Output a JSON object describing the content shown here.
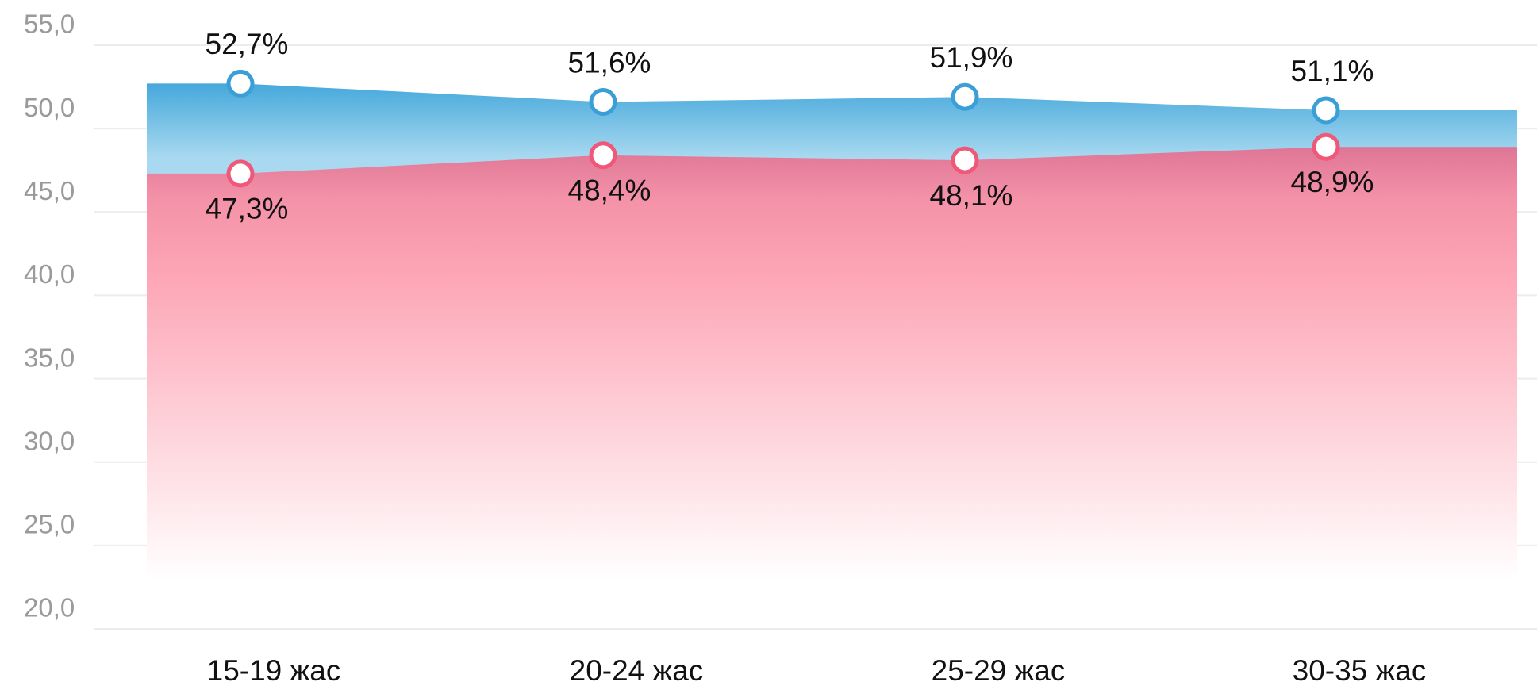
{
  "chart_data": {
    "type": "area",
    "categories": [
      "15-19 жас",
      "20-24 жас",
      "25-29 жас",
      "30-35 жас"
    ],
    "series": [
      {
        "color": "#3a9fd6",
        "values": [
          52.7,
          51.6,
          51.9,
          51.1
        ],
        "value_labels": [
          "52,7%",
          "51,6%",
          "51,9%",
          "51,1%"
        ]
      },
      {
        "color": "#f0587a",
        "values": [
          47.3,
          48.4,
          48.1,
          48.9
        ],
        "value_labels": [
          "47,3%",
          "48,4%",
          "48,1%",
          "48,9%"
        ]
      }
    ],
    "ylim": [
      20,
      55
    ],
    "yticks": [
      {
        "value": 20,
        "label": "20,0"
      },
      {
        "value": 25,
        "label": "25,0"
      },
      {
        "value": 30,
        "label": "30,0"
      },
      {
        "value": 35,
        "label": "35,0"
      },
      {
        "value": 40,
        "label": "40,0"
      },
      {
        "value": 45,
        "label": "45,0"
      },
      {
        "value": 50,
        "label": "50,0"
      },
      {
        "value": 55,
        "label": "55,0"
      }
    ],
    "grid": true
  }
}
